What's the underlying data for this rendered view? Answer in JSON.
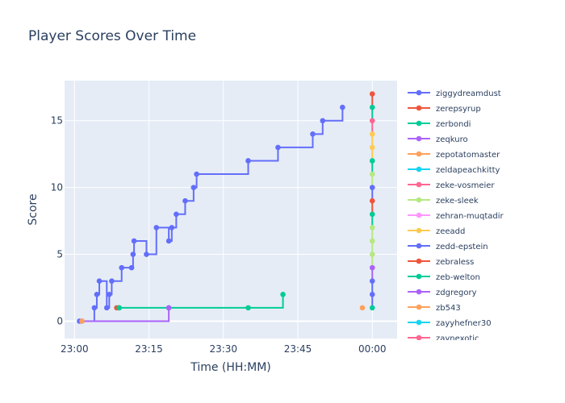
{
  "chart_data": {
    "type": "line",
    "line_shape": "step",
    "title": "Player Scores Over Time",
    "xlabel": "Time (HH:MM)",
    "ylabel": "Score",
    "x_ticks": [
      "23:00",
      "23:15",
      "23:30",
      "23:45",
      "00:00"
    ],
    "y_ticks": [
      0,
      5,
      10,
      15
    ],
    "xlim": [
      "22:58",
      "00:05"
    ],
    "ylim": [
      -1.3,
      18
    ],
    "grid": true,
    "legend_position": "right",
    "series": [
      {
        "name": "ziggydreamdust",
        "color": "#636efa",
        "x": [
          "23:01",
          "23:04",
          "23:04.5",
          "23:05",
          "23:06.5",
          "23:07",
          "23:07.5",
          "23:09.5",
          "23:11.5",
          "23:11.8",
          "23:12",
          "23:14.5",
          "23:16.5",
          "23:19",
          "23:19.6",
          "23:20.5",
          "23:22.3",
          "23:24",
          "23:24.6",
          "23:35",
          "23:41",
          "23:48",
          "23:50",
          "23:54"
        ],
        "values": [
          0,
          1,
          2,
          3,
          1,
          2,
          3,
          4,
          4,
          5,
          6,
          5,
          7,
          6,
          7,
          8,
          9,
          10,
          11,
          12,
          13,
          14,
          15,
          16
        ]
      },
      {
        "name": "zerepsyrup",
        "color": "#ef553b",
        "x": [
          "23:08.5",
          "23:09"
        ],
        "values": [
          1,
          1
        ]
      },
      {
        "name": "zerbondi",
        "color": "#00cc96",
        "x": [
          "23:09",
          "23:19",
          "23:35",
          "23:42"
        ],
        "values": [
          1,
          1,
          1,
          2
        ]
      },
      {
        "name": "zeqkuro",
        "color": "#ab63fa",
        "x": [
          "23:01.5",
          "23:19"
        ],
        "values": [
          0,
          1
        ]
      },
      {
        "name": "zepotatomaster",
        "color": "#ffa15a",
        "x": [
          "23:01.5"
        ],
        "values": [
          0
        ]
      }
    ],
    "legend_entries": [
      {
        "name": "ziggydreamdust",
        "color": "#636efa"
      },
      {
        "name": "zerepsyrup",
        "color": "#ef553b"
      },
      {
        "name": "zerbondi",
        "color": "#00cc96"
      },
      {
        "name": "zeqkuro",
        "color": "#ab63fa"
      },
      {
        "name": "zepotatomaster",
        "color": "#ffa15a"
      },
      {
        "name": "zeldapeachkitty",
        "color": "#19d3f3"
      },
      {
        "name": "zeke-vosmeier",
        "color": "#ff6692"
      },
      {
        "name": "zeke-sleek",
        "color": "#b6e880"
      },
      {
        "name": "zehran-muqtadir",
        "color": "#ff97ff"
      },
      {
        "name": "zeeadd",
        "color": "#fecb52"
      },
      {
        "name": "zedd-epstein",
        "color": "#636efa"
      },
      {
        "name": "zebraless",
        "color": "#ef553b"
      },
      {
        "name": "zeb-welton",
        "color": "#00cc96"
      },
      {
        "name": "zdgregory",
        "color": "#ab63fa"
      },
      {
        "name": "zb543",
        "color": "#ffa15a"
      },
      {
        "name": "zayyhefner30",
        "color": "#19d3f3"
      },
      {
        "name": "zaynexotic",
        "color": "#ff6692"
      }
    ],
    "midnight_cluster": {
      "x": "00:00",
      "values": [
        1,
        2,
        3,
        4,
        5,
        6,
        7,
        8,
        9,
        10,
        11,
        12,
        13,
        14,
        15,
        16,
        17
      ],
      "colors": [
        "#00cc96",
        "#636efa",
        "#636efa",
        "#ab63fa",
        "#b6e880",
        "#b6e880",
        "#b6e880",
        "#00cc96",
        "#ef553b",
        "#636efa",
        "#b6e880",
        "#00cc96",
        "#fecb52",
        "#fecb52",
        "#ff6692",
        "#00cc96",
        "#ef553b"
      ]
    },
    "stray_point": {
      "x": "23:58",
      "value": 1,
      "color": "#ffa15a"
    }
  }
}
